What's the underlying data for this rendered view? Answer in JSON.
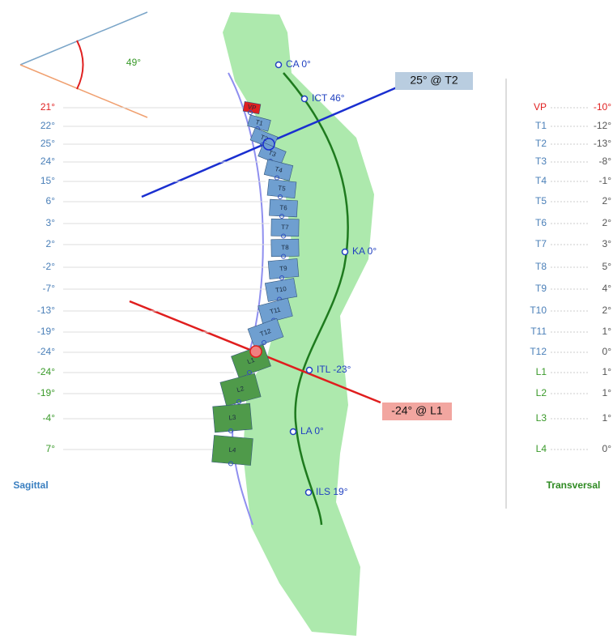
{
  "angle": {
    "label": "49°"
  },
  "vertebrae": [
    {
      "name": "VP",
      "sagittal": "21°",
      "transversal": "-10°"
    },
    {
      "name": "T1",
      "sagittal": "22°",
      "transversal": "-12°"
    },
    {
      "name": "T2",
      "sagittal": "25°",
      "transversal": "-13°"
    },
    {
      "name": "T3",
      "sagittal": "24°",
      "transversal": "-8°"
    },
    {
      "name": "T4",
      "sagittal": "15°",
      "transversal": "-1°"
    },
    {
      "name": "T5",
      "sagittal": "6°",
      "transversal": "2°"
    },
    {
      "name": "T6",
      "sagittal": "3°",
      "transversal": "2°"
    },
    {
      "name": "T7",
      "sagittal": "2°",
      "transversal": "3°"
    },
    {
      "name": "T8",
      "sagittal": "-2°",
      "transversal": "5°"
    },
    {
      "name": "T9",
      "sagittal": "-7°",
      "transversal": "4°"
    },
    {
      "name": "T10",
      "sagittal": "-13°",
      "transversal": "2°"
    },
    {
      "name": "T11",
      "sagittal": "-19°",
      "transversal": "1°"
    },
    {
      "name": "T12",
      "sagittal": "-24°",
      "transversal": "0°"
    },
    {
      "name": "L1",
      "sagittal": "-24°",
      "transversal": "1°"
    },
    {
      "name": "L2",
      "sagittal": "-19°",
      "transversal": "1°"
    },
    {
      "name": "L3",
      "sagittal": "-4°",
      "transversal": "1°"
    },
    {
      "name": "L4",
      "sagittal": "7°",
      "transversal": "0°"
    }
  ],
  "points": [
    "CA 0°",
    "ICT 46°",
    "KA 0°",
    "ITL -23°",
    "LA 0°",
    "ILS 19°"
  ],
  "callouts": [
    "25° @ T2",
    "-24° @ L1"
  ],
  "sagittal_title": "Sagittal",
  "transversal_title": "Transversal"
}
